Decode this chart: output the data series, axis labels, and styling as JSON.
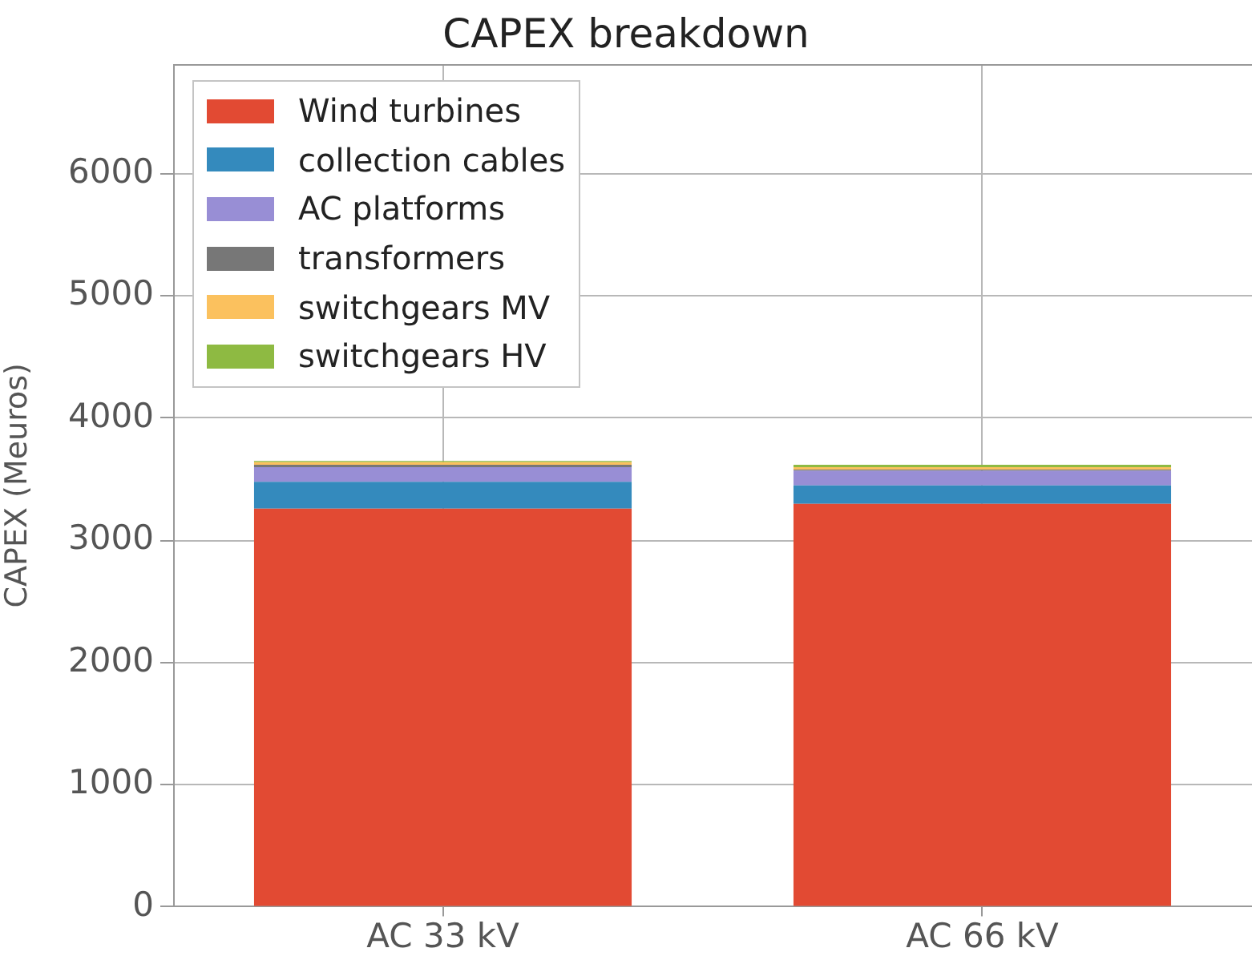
{
  "chart_data": {
    "type": "bar",
    "title": "CAPEX breakdown",
    "ylabel": "CAPEX (Meuros)",
    "categories": [
      "AC 33 kV",
      "AC 66 kV"
    ],
    "stacked": true,
    "series": [
      {
        "name": "Wind turbines",
        "color": "#e24a33",
        "values": [
          3260,
          3300
        ]
      },
      {
        "name": "collection cables",
        "color": "#348abd",
        "values": [
          220,
          150
        ]
      },
      {
        "name": "AC platforms",
        "color": "#988ed5",
        "values": [
          120,
          120
        ]
      },
      {
        "name": "transformers",
        "color": "#777777",
        "values": [
          20,
          10
        ]
      },
      {
        "name": "switchgears MV",
        "color": "#fbc15e",
        "values": [
          20,
          20
        ]
      },
      {
        "name": "switchgears HV",
        "color": "#8eba42",
        "values": [
          10,
          20
        ]
      }
    ],
    "ylim": [
      0,
      6900
    ],
    "yticks": [
      0,
      1000,
      2000,
      3000,
      4000,
      5000,
      6000
    ],
    "grid": true,
    "legend": "top left"
  }
}
